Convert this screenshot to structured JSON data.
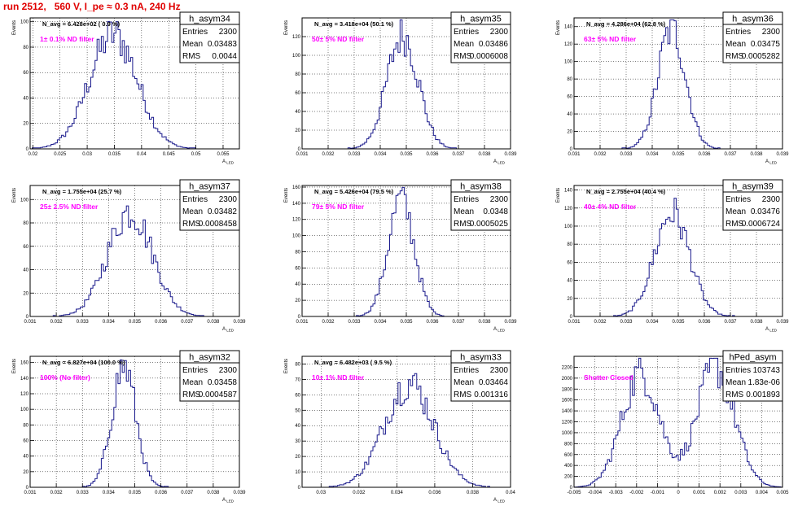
{
  "page": {
    "run_title": "run 2512,   560 V, I_pe ≈ 0.3 nA, 240 Hz",
    "title_color": "#e00000"
  },
  "colors": {
    "hist_line": "#1a1a8c",
    "filter_label": "#ff00ff",
    "axis": "#000000",
    "grid": "#000000"
  },
  "stats_labels": {
    "entries": "Entries",
    "mean": "Mean",
    "rms": "RMS"
  },
  "chart_data": [
    {
      "type": "histogram",
      "name": "h_asym34",
      "navg": "N_avg = 6.428e+02 ( 0.9 %)",
      "filter_label": "1± 0.1% ND filter",
      "stats": {
        "entries": "2300",
        "mean": "0.03483",
        "rms": "0.0044"
      },
      "ylabel": "Events",
      "xlabel": "A_{LED}",
      "xlim": [
        0.0195,
        0.058
      ],
      "ylim": [
        0,
        103
      ],
      "xticks": [
        0.02,
        0.025,
        0.03,
        0.035,
        0.04,
        0.045,
        0.05,
        0.055
      ],
      "xtick_labels": [
        "0.02",
        "0.025",
        "0.03",
        "0.035",
        "0.04",
        "0.045",
        "0.05",
        "0.055"
      ],
      "yticks": [
        0,
        20,
        40,
        60,
        80,
        100
      ],
      "ytick_labels": [
        "0",
        "20",
        "40",
        "60",
        "80",
        "100"
      ],
      "grid": true,
      "peaks": [
        {
          "mu": 0.0348,
          "sigma": 0.0044,
          "amp": 90
        }
      ],
      "nbins": 100
    },
    {
      "type": "histogram",
      "name": "h_asym35",
      "navg": "N_avg = 3.418e+04 (50.1 %)",
      "filter_label": "50± 5% ND filter",
      "stats": {
        "entries": "2300",
        "mean": "0.03486",
        "rms": "0.0006008"
      },
      "ylabel": "Events",
      "xlabel": "A_{LED}",
      "xlim": [
        0.031,
        0.039
      ],
      "ylim": [
        0,
        140
      ],
      "xticks": [
        0.031,
        0.032,
        0.033,
        0.034,
        0.035,
        0.036,
        0.037,
        0.038,
        0.039
      ],
      "xtick_labels": [
        "0.031",
        "0.032",
        "0.033",
        "0.034",
        "0.035",
        "0.036",
        "0.037",
        "0.038",
        "0.039"
      ],
      "yticks": [
        0,
        20,
        40,
        60,
        80,
        100,
        120
      ],
      "ytick_labels": [
        "0",
        "20",
        "40",
        "60",
        "80",
        "100",
        "120"
      ],
      "grid": true,
      "peaks": [
        {
          "mu": 0.03486,
          "sigma": 0.0006,
          "amp": 122
        }
      ],
      "nbins": 100
    },
    {
      "type": "histogram",
      "name": "h_asym36",
      "navg": "N_avg = 4.286e+04 (62.8 %)",
      "filter_label": "63± 5% ND filter",
      "stats": {
        "entries": "2300",
        "mean": "0.03475",
        "rms": "0.0005282"
      },
      "ylabel": "Events",
      "xlabel": "A_{LED}",
      "xlim": [
        0.031,
        0.039
      ],
      "ylim": [
        0,
        150
      ],
      "xticks": [
        0.031,
        0.032,
        0.033,
        0.034,
        0.035,
        0.036,
        0.037,
        0.038,
        0.039
      ],
      "xtick_labels": [
        "0.031",
        "0.032",
        "0.033",
        "0.034",
        "0.035",
        "0.036",
        "0.037",
        "0.038",
        "0.039"
      ],
      "yticks": [
        0,
        20,
        40,
        60,
        80,
        100,
        120,
        140
      ],
      "ytick_labels": [
        "0",
        "20",
        "40",
        "60",
        "80",
        "100",
        "120",
        "140"
      ],
      "grid": true,
      "peaks": [
        {
          "mu": 0.03475,
          "sigma": 0.00053,
          "amp": 138
        }
      ],
      "nbins": 100
    },
    {
      "type": "histogram",
      "name": "h_asym37",
      "navg": "N_avg = 1.755e+04 (25.7 %)",
      "filter_label": "25± 2.5% ND filter",
      "stats": {
        "entries": "2300",
        "mean": "0.03482",
        "rms": "0.0008458"
      },
      "ylabel": "Events",
      "xlabel": "A_{LED}",
      "xlim": [
        0.031,
        0.039
      ],
      "ylim": [
        0,
        112
      ],
      "xticks": [
        0.031,
        0.032,
        0.033,
        0.034,
        0.035,
        0.036,
        0.037,
        0.038,
        0.039
      ],
      "xtick_labels": [
        "0.031",
        "0.032",
        "0.033",
        "0.034",
        "0.035",
        "0.036",
        "0.037",
        "0.038",
        "0.039"
      ],
      "yticks": [
        0,
        20,
        40,
        60,
        80,
        100
      ],
      "ytick_labels": [
        "0",
        "20",
        "40",
        "60",
        "80",
        "100"
      ],
      "grid": true,
      "peaks": [
        {
          "mu": 0.03482,
          "sigma": 0.00085,
          "amp": 90
        }
      ],
      "nbins": 100
    },
    {
      "type": "histogram",
      "name": "h_asym38",
      "navg": "N_avg = 5.426e+04 (79.5 %)",
      "filter_label": "79± 5% ND filter",
      "stats": {
        "entries": "2300",
        "mean": "0.0348",
        "rms": "0.0005025"
      },
      "ylabel": "Events",
      "xlabel": "A_{LED}",
      "xlim": [
        0.031,
        0.039
      ],
      "ylim": [
        0,
        162
      ],
      "xticks": [
        0.031,
        0.032,
        0.033,
        0.034,
        0.035,
        0.036,
        0.037,
        0.038,
        0.039
      ],
      "xtick_labels": [
        "0.031",
        "0.032",
        "0.033",
        "0.034",
        "0.035",
        "0.036",
        "0.037",
        "0.038",
        "0.039"
      ],
      "yticks": [
        0,
        20,
        40,
        60,
        80,
        100,
        120,
        140,
        160
      ],
      "ytick_labels": [
        "0",
        "20",
        "40",
        "60",
        "80",
        "100",
        "120",
        "140",
        "160"
      ],
      "grid": true,
      "peaks": [
        {
          "mu": 0.0348,
          "sigma": 0.0005,
          "amp": 145
        }
      ],
      "nbins": 100
    },
    {
      "type": "histogram",
      "name": "h_asym39",
      "navg": "N_avg = 2.755e+04 (40.4 %)",
      "filter_label": "40± 4% ND filter",
      "stats": {
        "entries": "2300",
        "mean": "0.03476",
        "rms": "0.0006724"
      },
      "ylabel": "Events",
      "xlabel": "A_{LED}",
      "xlim": [
        0.031,
        0.039
      ],
      "ylim": [
        0,
        145
      ],
      "xticks": [
        0.031,
        0.032,
        0.033,
        0.034,
        0.035,
        0.036,
        0.037,
        0.038,
        0.039
      ],
      "xtick_labels": [
        "0.031",
        "0.032",
        "0.033",
        "0.034",
        "0.035",
        "0.036",
        "0.037",
        "0.038",
        "0.039"
      ],
      "yticks": [
        0,
        20,
        40,
        60,
        80,
        100,
        120,
        140
      ],
      "ytick_labels": [
        "0",
        "20",
        "40",
        "60",
        "80",
        "100",
        "120",
        "140"
      ],
      "grid": true,
      "peaks": [
        {
          "mu": 0.03476,
          "sigma": 0.00067,
          "amp": 115
        }
      ],
      "nbins": 100
    },
    {
      "type": "histogram",
      "name": "h_asym32",
      "navg": "N_avg = 6.827e+04 (100.0 %)",
      "filter_label": "100% (No filter)",
      "stats": {
        "entries": "2300",
        "mean": "0.03458",
        "rms": "0.0004587"
      },
      "ylabel": "Events",
      "xlabel": "A_{LED}",
      "xlim": [
        0.031,
        0.039
      ],
      "ylim": [
        0,
        168
      ],
      "xticks": [
        0.031,
        0.032,
        0.033,
        0.034,
        0.035,
        0.036,
        0.037,
        0.038,
        0.039
      ],
      "xtick_labels": [
        "0.031",
        "0.032",
        "0.033",
        "0.034",
        "0.035",
        "0.036",
        "0.037",
        "0.038",
        "0.039"
      ],
      "yticks": [
        0,
        20,
        40,
        60,
        80,
        100,
        120,
        140,
        160
      ],
      "ytick_labels": [
        "0",
        "20",
        "40",
        "60",
        "80",
        "100",
        "120",
        "140",
        "160"
      ],
      "grid": true,
      "peaks": [
        {
          "mu": 0.03458,
          "sigma": 0.00046,
          "amp": 155
        }
      ],
      "nbins": 100
    },
    {
      "type": "histogram",
      "name": "h_asym33",
      "navg": "N_avg = 6.482e+03 ( 9.5 %)",
      "filter_label": "10± 1% ND filter",
      "stats": {
        "entries": "2300",
        "mean": "0.03464",
        "rms": "0.001316"
      },
      "ylabel": "Events",
      "xlabel": "A_{LED}",
      "xlim": [
        0.029,
        0.04
      ],
      "ylim": [
        0,
        85
      ],
      "xticks": [
        0.03,
        0.032,
        0.034,
        0.036,
        0.038,
        0.04
      ],
      "xtick_labels": [
        "0.03",
        "0.032",
        "0.034",
        "0.036",
        "0.038",
        "0.04"
      ],
      "yticks": [
        0,
        10,
        20,
        30,
        40,
        50,
        60,
        70,
        80
      ],
      "ytick_labels": [
        "0",
        "10",
        "20",
        "30",
        "40",
        "50",
        "60",
        "70",
        "80"
      ],
      "grid": true,
      "peaks": [
        {
          "mu": 0.03464,
          "sigma": 0.0013,
          "amp": 68
        }
      ],
      "nbins": 100
    },
    {
      "type": "histogram",
      "name": "hPed_asym",
      "navg": "",
      "filter_label": "Shutter Closed",
      "stats": {
        "entries": "103743",
        "mean": "1.83e-06",
        "rms": "0.001893"
      },
      "ylabel": "",
      "xlabel": "",
      "xlim": [
        -0.005,
        0.005
      ],
      "ylim": [
        0,
        2400
      ],
      "xticks": [
        -0.005,
        -0.004,
        -0.003,
        -0.002,
        -0.001,
        0,
        0.001,
        0.002,
        0.003,
        0.004,
        0.005
      ],
      "xtick_labels": [
        "-0.005",
        "-0.004",
        "-0.003",
        "-0.002",
        "-0.001",
        "0",
        "0.001",
        "0.002",
        "0.003",
        "0.004",
        "0.005"
      ],
      "yticks": [
        0,
        200,
        400,
        600,
        800,
        1000,
        1200,
        1400,
        1600,
        1800,
        2000,
        2200
      ],
      "ytick_labels": [
        "0",
        "200",
        "400",
        "600",
        "800",
        "1000",
        "1200",
        "1400",
        "1600",
        "1800",
        "2000",
        "2200"
      ],
      "grid": true,
      "peaks": [
        {
          "mu": -0.0018,
          "sigma": 0.0009,
          "amp": 2100
        },
        {
          "mu": 0.0018,
          "sigma": 0.0009,
          "amp": 2200
        }
      ],
      "nbins": 100
    }
  ]
}
